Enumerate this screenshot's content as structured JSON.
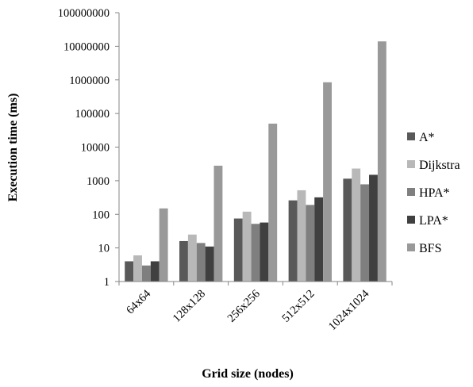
{
  "chart_data": {
    "type": "bar",
    "title": "",
    "xlabel": "Grid size (nodes)",
    "ylabel": "Execution time (ms)",
    "yscale": "log",
    "ylim": [
      1,
      100000000
    ],
    "y_ticks": [
      "1",
      "10",
      "100",
      "1000",
      "10000",
      "100000",
      "1000000",
      "10000000",
      "100000000"
    ],
    "categories": [
      "64x64",
      "128x128",
      "256x256",
      "512x512",
      "1024x1024"
    ],
    "legend_position": "right",
    "grid": false,
    "series": [
      {
        "name": "A*",
        "color": "#595959",
        "values": [
          4,
          16,
          75,
          260,
          1150
        ]
      },
      {
        "name": "Dijkstra",
        "color": "#b8b8b8",
        "values": [
          6,
          25,
          120,
          520,
          2300
        ]
      },
      {
        "name": "HPA*",
        "color": "#7f7f7f",
        "values": [
          3,
          14,
          52,
          190,
          780
        ]
      },
      {
        "name": "LPA*",
        "color": "#404040",
        "values": [
          4,
          11,
          57,
          320,
          1500
        ]
      },
      {
        "name": "BFS",
        "color": "#999999",
        "values": [
          150,
          2800,
          50000,
          850000,
          14000000
        ]
      }
    ]
  }
}
